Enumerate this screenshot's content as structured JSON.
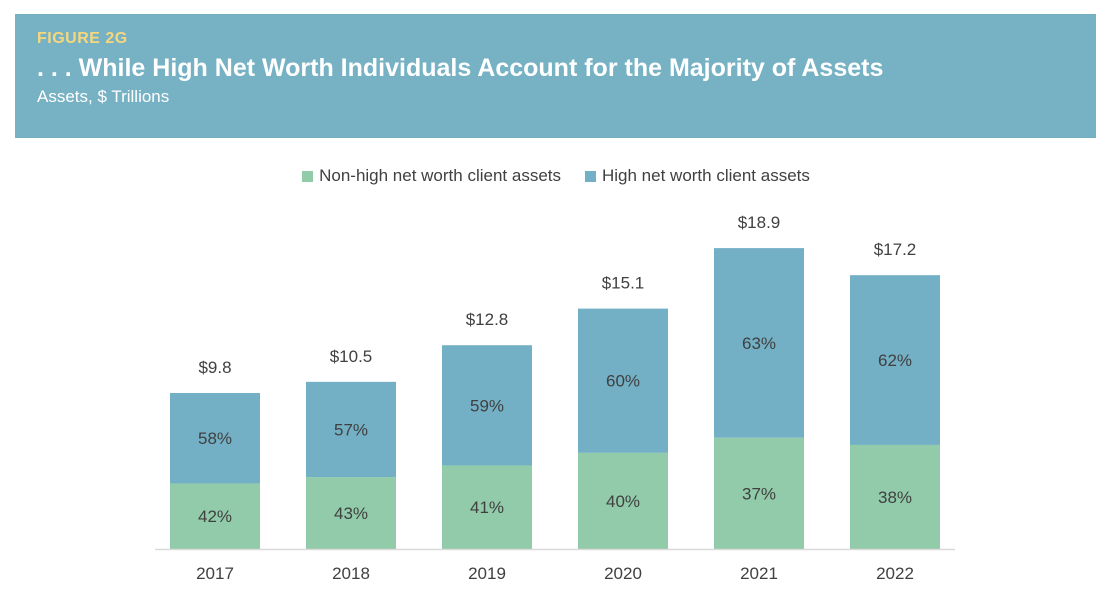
{
  "header": {
    "figure_label": "FIGURE 2G",
    "title": ". . . While High Net Worth Individuals Account for the Majority of Assets",
    "subtitle": "Assets, $ Trillions"
  },
  "colors": {
    "header_bg": "#76b1c4",
    "figure_label": "#f7d77c",
    "non_hnw": "#91cba9",
    "hnw": "#73b0c5"
  },
  "chart_data": {
    "type": "bar",
    "stacked": true,
    "categories": [
      "2017",
      "2018",
      "2019",
      "2020",
      "2021",
      "2022"
    ],
    "totals": [
      9.8,
      10.5,
      12.8,
      15.1,
      18.9,
      17.2
    ],
    "total_labels": [
      "$9.8",
      "$10.5",
      "$12.8",
      "$15.1",
      "$18.9",
      "$17.2"
    ],
    "series": [
      {
        "name": "Non-high net worth client assets",
        "share_percent": [
          42,
          43,
          41,
          40,
          37,
          38
        ],
        "labels": [
          "42%",
          "43%",
          "41%",
          "40%",
          "37%",
          "38%"
        ]
      },
      {
        "name": "High net worth client assets",
        "share_percent": [
          58,
          57,
          59,
          60,
          63,
          62
        ],
        "labels": [
          "58%",
          "57%",
          "59%",
          "60%",
          "63%",
          "62%"
        ]
      }
    ],
    "legend_position": "top-center",
    "ylim": [
      0,
      20
    ],
    "grid": false
  }
}
